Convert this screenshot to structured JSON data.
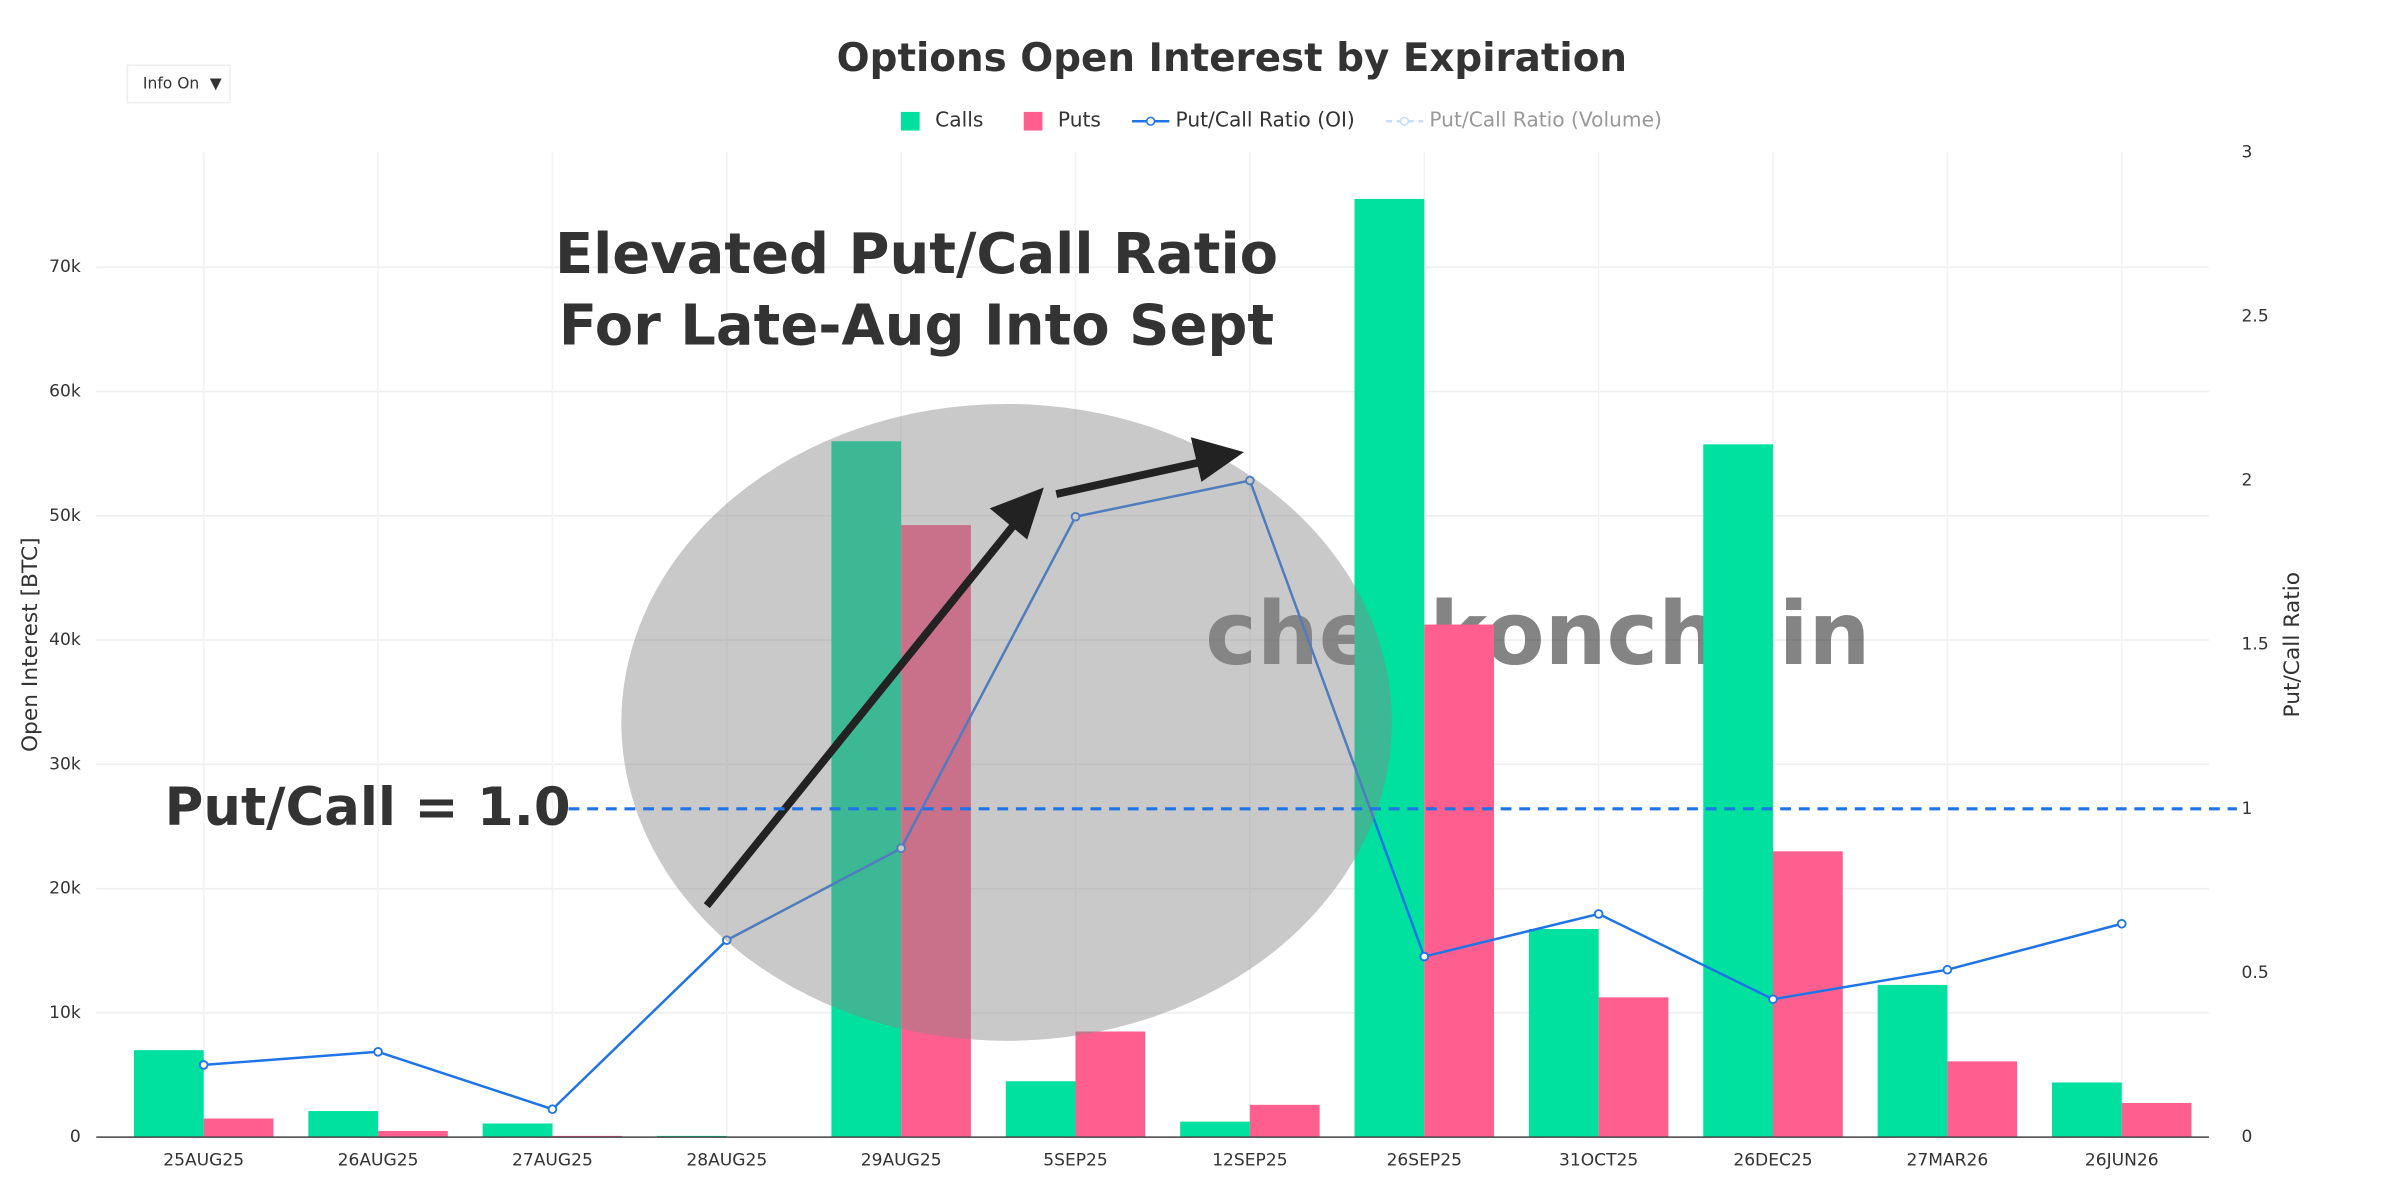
{
  "ui": {
    "dropdown": "Info On"
  },
  "chart_data": {
    "type": "bar",
    "title": "Options Open Interest by Expiration",
    "categories": [
      "25AUG25",
      "26AUG25",
      "27AUG25",
      "28AUG25",
      "29AUG25",
      "5SEP25",
      "12SEP25",
      "26SEP25",
      "31OCT25",
      "26DEC25",
      "27MAR26",
      "26JUN26"
    ],
    "series": [
      {
        "name": "Calls",
        "type": "bar",
        "color": "#00e09e",
        "values": [
          7000,
          2100,
          1100,
          100,
          56000,
          4500,
          1250,
          75500,
          16750,
          55750,
          12250,
          4400
        ]
      },
      {
        "name": "Puts",
        "type": "bar",
        "color": "#ff5f8f",
        "values": [
          1500,
          500,
          100,
          50,
          49250,
          8500,
          2600,
          41250,
          11250,
          23000,
          6100,
          2750
        ]
      },
      {
        "name": "Put/Call Ratio (OI)",
        "type": "line",
        "axis": "y2",
        "color": "#1f74e8",
        "values": [
          0.22,
          0.26,
          0.085,
          0.6,
          0.88,
          1.89,
          2.0,
          0.55,
          0.68,
          0.42,
          0.51,
          0.65
        ]
      },
      {
        "name": "Put/Call Ratio (Volume)",
        "type": "line",
        "axis": "y2",
        "color": "#8fbdf5",
        "visible": false,
        "values": [
          null,
          null,
          null,
          null,
          null,
          null,
          null,
          null,
          null,
          null,
          null,
          null
        ]
      }
    ],
    "ylabel": "Open Interest [BTC]",
    "y2label": "Put/Call Ratio",
    "ylim": [
      0,
      79250
    ],
    "yticks": [
      0,
      {
        "value": 10000,
        "label": "10k"
      },
      {
        "value": 20000,
        "label": "20k"
      },
      {
        "value": 30000,
        "label": "30k"
      },
      {
        "value": 40000,
        "label": "40k"
      },
      {
        "value": 50000,
        "label": "50k"
      },
      {
        "value": 60000,
        "label": "60k"
      },
      {
        "value": 70000,
        "label": "70k"
      }
    ],
    "y2lim": [
      0,
      3
    ],
    "y2ticks": [
      0,
      0.5,
      1,
      1.5,
      2,
      2.5,
      3
    ],
    "grid": true,
    "legend": "top",
    "reference_line": {
      "value": 1,
      "label": "Put/Call = 1.0",
      "color": "#1f74e8"
    },
    "annotation": [
      "Elevated Put/Call Ratio",
      "For Late-Aug Into Sept"
    ],
    "watermark": "checkonchain"
  }
}
